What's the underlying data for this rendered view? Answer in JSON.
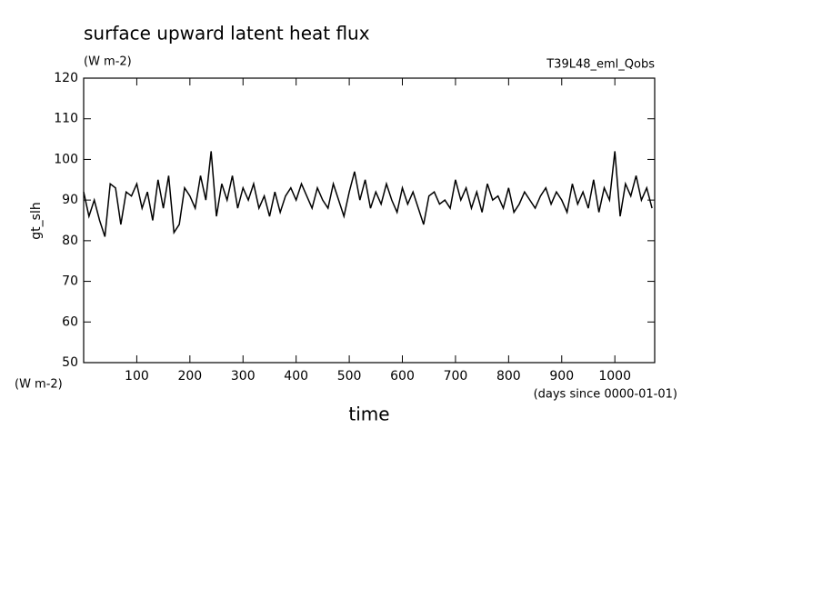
{
  "chart_data": {
    "type": "line",
    "title": "surface upward latent heat flux",
    "units": "(W m-2)",
    "run_label": "T39L48_eml_Qobs",
    "ylabel": "gt_slh",
    "xlabel": "time",
    "x_units": "(days since 0000-01-01)",
    "x": [
      0,
      10,
      20,
      30,
      40,
      50,
      60,
      70,
      80,
      90,
      100,
      110,
      120,
      130,
      140,
      150,
      160,
      170,
      180,
      190,
      200,
      210,
      220,
      230,
      240,
      250,
      260,
      270,
      280,
      290,
      300,
      310,
      320,
      330,
      340,
      350,
      360,
      370,
      380,
      390,
      400,
      410,
      420,
      430,
      440,
      450,
      460,
      470,
      480,
      490,
      500,
      510,
      520,
      530,
      540,
      550,
      560,
      570,
      580,
      590,
      600,
      610,
      620,
      630,
      640,
      650,
      660,
      670,
      680,
      690,
      700,
      710,
      720,
      730,
      740,
      750,
      760,
      770,
      780,
      790,
      800,
      810,
      820,
      830,
      840,
      850,
      860,
      870,
      880,
      890,
      900,
      910,
      920,
      930,
      940,
      950,
      960,
      970,
      980,
      990,
      1000,
      1010,
      1020,
      1030,
      1040,
      1050,
      1060,
      1070
    ],
    "series": [
      {
        "name": "gt_slh",
        "color": "#000000",
        "values": [
          92,
          86,
          90,
          85,
          81,
          94,
          93,
          84,
          92,
          91,
          94,
          88,
          92,
          85,
          95,
          88,
          96,
          82,
          84,
          93,
          91,
          88,
          96,
          90,
          102,
          86,
          94,
          90,
          96,
          88,
          93,
          90,
          94,
          88,
          91,
          86,
          92,
          87,
          91,
          93,
          90,
          94,
          91,
          88,
          93,
          90,
          88,
          94,
          90,
          86,
          92,
          97,
          90,
          95,
          88,
          92,
          89,
          94,
          90,
          87,
          93,
          89,
          92,
          88,
          84,
          91,
          92,
          89,
          90,
          88,
          95,
          90,
          93,
          88,
          92,
          87,
          94,
          90,
          91,
          88,
          93,
          87,
          89,
          92,
          90,
          88,
          91,
          93,
          89,
          92,
          90,
          87,
          94,
          89,
          92,
          88,
          95,
          87,
          93,
          90,
          102,
          86,
          94,
          91,
          96,
          90,
          93,
          88
        ]
      }
    ],
    "xlim": [
      0,
      1075
    ],
    "ylim": [
      50,
      120
    ],
    "xticks": [
      100,
      200,
      300,
      400,
      500,
      600,
      700,
      800,
      900,
      1000
    ],
    "yticks": [
      50,
      60,
      70,
      80,
      90,
      100,
      110,
      120
    ]
  }
}
